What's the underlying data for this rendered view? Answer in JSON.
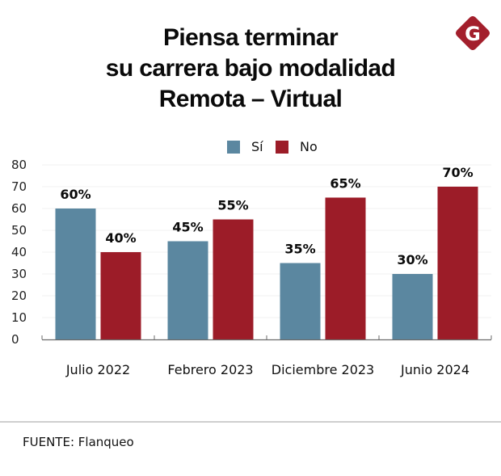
{
  "header": {
    "title_lines": [
      "Piensa terminar",
      "su carrera bajo modalidad",
      "Remota – Virtual"
    ],
    "logo_icon": "g-diamond-logo-icon",
    "logo_letter": "G"
  },
  "colors": {
    "si": "#5b87a0",
    "no": "#9c1c28",
    "logo": "#a31f2c",
    "axis": "#6b6b6b",
    "grid": "#f0f0f0"
  },
  "chart_data": {
    "type": "bar",
    "title": "Piensa terminar su carrera bajo modalidad Remota – Virtual",
    "categories": [
      "Julio 2022",
      "Febrero 2023",
      "Diciembre 2023",
      "Junio 2024"
    ],
    "series": [
      {
        "name": "Sí",
        "values": [
          60,
          45,
          35,
          30
        ],
        "labels": [
          "60%",
          "45%",
          "35%",
          "30%"
        ]
      },
      {
        "name": "No",
        "values": [
          40,
          55,
          65,
          70
        ],
        "labels": [
          "40%",
          "55%",
          "65%",
          "70%"
        ]
      }
    ],
    "xlabel": "",
    "ylabel": "",
    "ylim": [
      0,
      80
    ],
    "yticks": [
      0,
      10,
      20,
      30,
      40,
      50,
      60,
      70,
      80
    ],
    "ytick_labels": [
      "0",
      "10",
      "20",
      "30",
      "40",
      "50",
      "60",
      "70",
      "80"
    ],
    "grid": true,
    "legend": {
      "position": "top-center",
      "entries": [
        "Sí",
        "No"
      ]
    }
  },
  "legend": {
    "si_label": "Sí",
    "no_label": "No"
  },
  "footer": {
    "source": "FUENTE: Flanqueo"
  }
}
